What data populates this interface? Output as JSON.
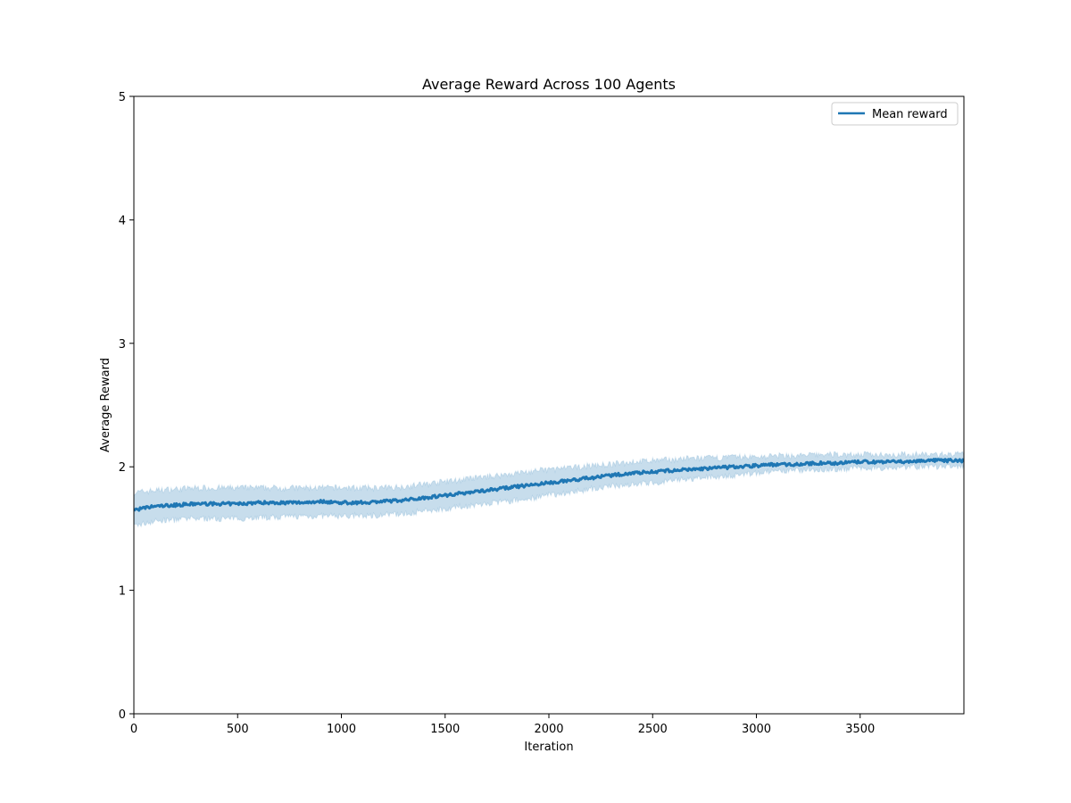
{
  "chart_data": {
    "type": "line",
    "title": "Average Reward Across 100 Agents",
    "xlabel": "Iteration",
    "ylabel": "Average Reward",
    "xlim": [
      0,
      4000
    ],
    "ylim": [
      0,
      5
    ],
    "xticks": [
      0,
      500,
      1000,
      1500,
      2000,
      2500,
      3000,
      3500
    ],
    "yticks": [
      0,
      1,
      2,
      3,
      4,
      5
    ],
    "grid": false,
    "legend_position": "top-right",
    "series": [
      {
        "name": "Mean reward",
        "color": "#1f77b4",
        "x": [
          0,
          100,
          200,
          300,
          400,
          500,
          600,
          700,
          800,
          900,
          1000,
          1100,
          1200,
          1300,
          1400,
          1500,
          1600,
          1700,
          1800,
          1900,
          2000,
          2100,
          2200,
          2300,
          2400,
          2500,
          2600,
          2700,
          2800,
          2900,
          3000,
          3100,
          3200,
          3300,
          3400,
          3500,
          3600,
          3700,
          3800,
          3900,
          4000
        ],
        "values": [
          1.65,
          1.68,
          1.69,
          1.7,
          1.7,
          1.7,
          1.71,
          1.71,
          1.71,
          1.72,
          1.71,
          1.71,
          1.72,
          1.73,
          1.75,
          1.77,
          1.79,
          1.81,
          1.83,
          1.85,
          1.87,
          1.89,
          1.91,
          1.93,
          1.95,
          1.96,
          1.97,
          1.98,
          1.99,
          2.0,
          2.01,
          2.02,
          2.02,
          2.03,
          2.03,
          2.04,
          2.04,
          2.04,
          2.05,
          2.05,
          2.05
        ],
        "band_lower": [
          1.52,
          1.56,
          1.57,
          1.58,
          1.58,
          1.58,
          1.59,
          1.59,
          1.6,
          1.6,
          1.6,
          1.6,
          1.61,
          1.62,
          1.64,
          1.66,
          1.68,
          1.7,
          1.72,
          1.74,
          1.77,
          1.79,
          1.82,
          1.84,
          1.86,
          1.87,
          1.89,
          1.9,
          1.92,
          1.93,
          1.95,
          1.96,
          1.97,
          1.98,
          1.98,
          1.99,
          1.99,
          2.0,
          2.0,
          2.0,
          2.0
        ],
        "band_upper": [
          1.79,
          1.81,
          1.82,
          1.83,
          1.83,
          1.83,
          1.83,
          1.83,
          1.83,
          1.83,
          1.83,
          1.83,
          1.83,
          1.84,
          1.86,
          1.88,
          1.9,
          1.92,
          1.94,
          1.96,
          1.98,
          1.99,
          2.01,
          2.02,
          2.04,
          2.05,
          2.06,
          2.07,
          2.07,
          2.08,
          2.08,
          2.09,
          2.09,
          2.1,
          2.1,
          2.1,
          2.1,
          2.1,
          2.1,
          2.1,
          2.1
        ]
      }
    ]
  }
}
